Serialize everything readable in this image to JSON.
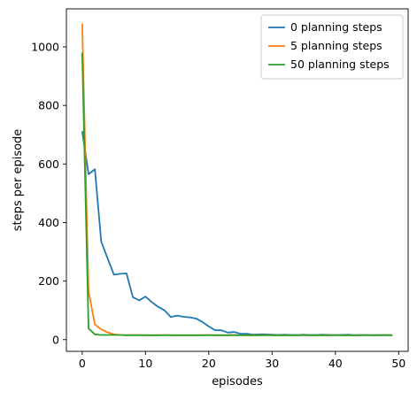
{
  "chart_data": {
    "type": "line",
    "title": "",
    "xlabel": "episodes",
    "ylabel": "steps per episode",
    "xlim": [
      -2.5,
      51.5
    ],
    "ylim": [
      -40,
      1130
    ],
    "xticks": [
      0,
      10,
      20,
      30,
      40,
      50
    ],
    "yticks": [
      0,
      200,
      400,
      600,
      800,
      1000
    ],
    "grid": false,
    "legend_position": "top-right",
    "series": [
      {
        "name": "0 planning steps",
        "color": "#1f77b4",
        "x": [
          0,
          1,
          2,
          3,
          4,
          5,
          6,
          7,
          8,
          9,
          10,
          11,
          12,
          13,
          14,
          15,
          16,
          17,
          18,
          19,
          20,
          21,
          22,
          23,
          24,
          25,
          26,
          27,
          28,
          29,
          30,
          31,
          32,
          33,
          34,
          35,
          36,
          37,
          38,
          39,
          40,
          41,
          42,
          43,
          44,
          45,
          46,
          47,
          48,
          49
        ],
        "y": [
          712,
          565,
          582,
          335,
          278,
          222,
          225,
          226,
          145,
          134,
          147,
          128,
          112,
          100,
          77,
          82,
          78,
          76,
          72,
          60,
          45,
          32,
          32,
          24,
          26,
          20,
          20,
          17,
          18,
          18,
          17,
          16,
          17,
          16,
          16,
          17,
          16,
          16,
          17,
          16,
          16,
          16,
          17,
          15,
          16,
          16,
          15,
          16,
          16,
          15
        ]
      },
      {
        "name": "5 planning steps",
        "color": "#ff7f0e",
        "x": [
          0,
          1,
          2,
          3,
          4,
          5,
          6,
          7,
          8,
          9,
          10,
          11,
          12,
          13,
          14,
          15,
          16,
          17,
          18,
          19,
          20,
          21,
          22,
          23,
          24,
          25,
          26,
          27,
          28,
          29,
          30,
          31,
          32,
          33,
          34,
          35,
          36,
          37,
          38,
          39,
          40,
          41,
          42,
          43,
          44,
          45,
          46,
          47,
          48,
          49
        ],
        "y": [
          1080,
          165,
          52,
          35,
          25,
          18,
          16,
          15,
          16,
          16,
          15,
          15,
          15,
          16,
          15,
          15,
          15,
          15,
          15,
          15,
          16,
          15,
          15,
          15,
          16,
          15,
          15,
          15,
          15,
          16,
          15,
          15,
          15,
          15,
          15,
          16,
          15,
          15,
          15,
          15,
          16,
          15,
          15,
          15,
          15,
          16,
          15,
          15,
          16,
          15
        ]
      },
      {
        "name": "50 planning steps",
        "color": "#2ca02c",
        "x": [
          0,
          1,
          2,
          3,
          4,
          5,
          6,
          7,
          8,
          9,
          10,
          11,
          12,
          13,
          14,
          15,
          16,
          17,
          18,
          19,
          20,
          21,
          22,
          23,
          24,
          25,
          26,
          27,
          28,
          29,
          30,
          31,
          32,
          33,
          34,
          35,
          36,
          37,
          38,
          39,
          40,
          41,
          42,
          43,
          44,
          45,
          46,
          47,
          48,
          49
        ],
        "y": [
          980,
          38,
          18,
          16,
          16,
          16,
          16,
          15,
          15,
          15,
          15,
          15,
          15,
          15,
          15,
          15,
          15,
          15,
          15,
          15,
          15,
          15,
          15,
          15,
          15,
          15,
          15,
          15,
          15,
          15,
          15,
          15,
          15,
          15,
          15,
          15,
          15,
          15,
          15,
          15,
          15,
          15,
          15,
          15,
          15,
          15,
          15,
          15,
          15,
          15
        ]
      }
    ]
  }
}
